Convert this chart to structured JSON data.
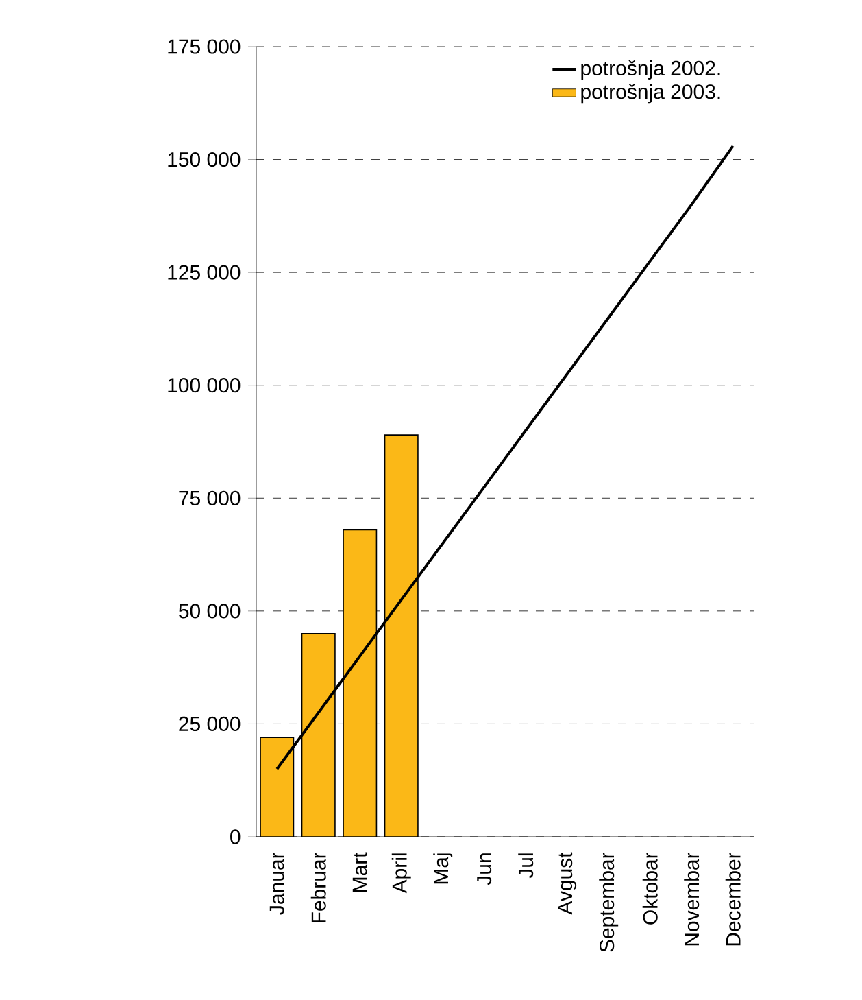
{
  "chart_data": {
    "type": "bar",
    "categories": [
      "Januar",
      "Februar",
      "Mart",
      "April",
      "Maj",
      "Jun",
      "Jul",
      "Avgust",
      "Septembar",
      "Oktobar",
      "Novembar",
      "December"
    ],
    "series": [
      {
        "name": "potrošnja 2002.",
        "type": "line",
        "color": "#000000",
        "values": [
          15000,
          27500,
          40000,
          52500,
          65000,
          77500,
          90000,
          102500,
          115000,
          127500,
          140000,
          153000
        ]
      },
      {
        "name": "potrošnja 2003.",
        "color": "#fbb817",
        "values": [
          22000,
          45000,
          68000,
          89000,
          null,
          null,
          null,
          null,
          null,
          null,
          null,
          null
        ]
      }
    ],
    "ylim": [
      0,
      175000
    ],
    "yticks": [
      {
        "value": 0,
        "label": "0"
      },
      {
        "value": 25000,
        "label": "25 000"
      },
      {
        "value": 50000,
        "label": "50 000"
      },
      {
        "value": 75000,
        "label": "75 000"
      },
      {
        "value": 100000,
        "label": "100 000"
      },
      {
        "value": 125000,
        "label": "125 000"
      },
      {
        "value": 150000,
        "label": "150 000"
      },
      {
        "value": 175000,
        "label": "175 000"
      }
    ],
    "grid": "y",
    "legend": "top right",
    "line_style": "solid",
    "marker": "none"
  }
}
